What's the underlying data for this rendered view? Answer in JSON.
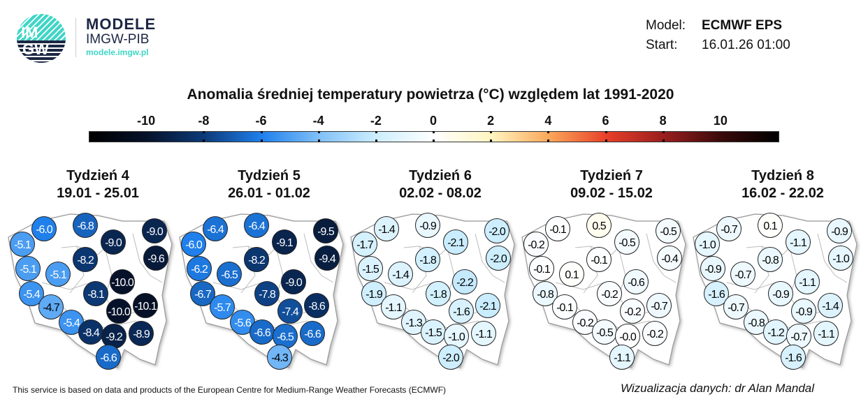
{
  "logo": {
    "mark_text": [
      "IM",
      "GW"
    ],
    "name": "MODELE",
    "org": "IMGW-PIB",
    "url": "modele.imgw.pl",
    "colors": {
      "teal": "#3fd6c6",
      "navy": "#1c2743"
    }
  },
  "meta": {
    "model_label": "Model:",
    "model_value": "ECMWF EPS",
    "start_label": "Start:",
    "start_value": "16.01.26 01:00"
  },
  "title": "Anomalia średniej temperatury powietrza (°C) względem lat 1991-2020",
  "colorbar": {
    "ticks": [
      "-10",
      "-8",
      "-6",
      "-4",
      "-2",
      "0",
      "2",
      "4",
      "6",
      "8",
      "10"
    ],
    "range": [
      -12,
      12
    ],
    "stops": [
      [
        -12,
        "#000000"
      ],
      [
        -10,
        "#06122a"
      ],
      [
        -8,
        "#0c3a78"
      ],
      [
        -6,
        "#1f80ec"
      ],
      [
        -4,
        "#80c0f8"
      ],
      [
        -2,
        "#cdeefe"
      ],
      [
        0,
        "#ffffff"
      ],
      [
        2,
        "#fff5c0"
      ],
      [
        4,
        "#fba85a"
      ],
      [
        6,
        "#e8402a"
      ],
      [
        8,
        "#9a1e1e"
      ],
      [
        10,
        "#3a0a0a"
      ],
      [
        12,
        "#000000"
      ]
    ]
  },
  "weeks": [
    {
      "name": "Tydzień 4",
      "dates": "19.01 - 25.01",
      "values": [
        -6.0,
        -6.8,
        -5.1,
        -9.0,
        -9.0,
        -9.6,
        -8.2,
        -5.1,
        -5.1,
        -10.0,
        -8.1,
        -5.4,
        -4.7,
        -10.1,
        -10.0,
        -5.4,
        -8.4,
        -9.2,
        -8.9,
        -6.6
      ]
    },
    {
      "name": "Tydzień 5",
      "dates": "26.01 - 01.02",
      "values": [
        -6.4,
        -6.4,
        -6.0,
        -9.1,
        -9.5,
        -9.4,
        -8.2,
        -6.2,
        -6.5,
        -9.0,
        -7.8,
        -6.7,
        -5.7,
        -8.6,
        -7.4,
        -5.6,
        -6.6,
        -6.5,
        -6.6,
        -4.3
      ]
    },
    {
      "name": "Tydzień 6",
      "dates": "02.02 - 08.02",
      "values": [
        -1.4,
        -0.9,
        -1.7,
        -2.1,
        -2.0,
        -2.0,
        -1.8,
        -1.5,
        -1.4,
        -2.2,
        -1.8,
        -1.9,
        -1.1,
        -2.1,
        -1.6,
        -1.3,
        -1.5,
        -1.0,
        -1.1,
        -2.0
      ]
    },
    {
      "name": "Tydzień 7",
      "dates": "09.02 - 15.02",
      "values": [
        -0.1,
        0.5,
        -0.2,
        -0.5,
        -0.5,
        -0.4,
        -0.1,
        -0.1,
        0.1,
        -0.6,
        -0.2,
        -0.8,
        -0.1,
        -0.7,
        -0.2,
        -0.2,
        -0.5,
        -0.0,
        -0.2,
        -1.1
      ]
    },
    {
      "name": "Tydzień 8",
      "dates": "16.02 - 22.02",
      "values": [
        -0.7,
        0.1,
        -1.0,
        -1.1,
        -0.9,
        -1.0,
        -0.8,
        -0.9,
        -0.7,
        -1.1,
        -0.9,
        -1.6,
        -0.7,
        -1.4,
        -0.9,
        -0.8,
        -1.2,
        -0.7,
        -1.1,
        -1.6
      ]
    }
  ],
  "footer": {
    "source": "This service is based on data and products of the European Centre for Medium-Range Weather Forecasts (ECMWF)",
    "credit": "Wizualizacja danych: dr Alan Mandal"
  }
}
